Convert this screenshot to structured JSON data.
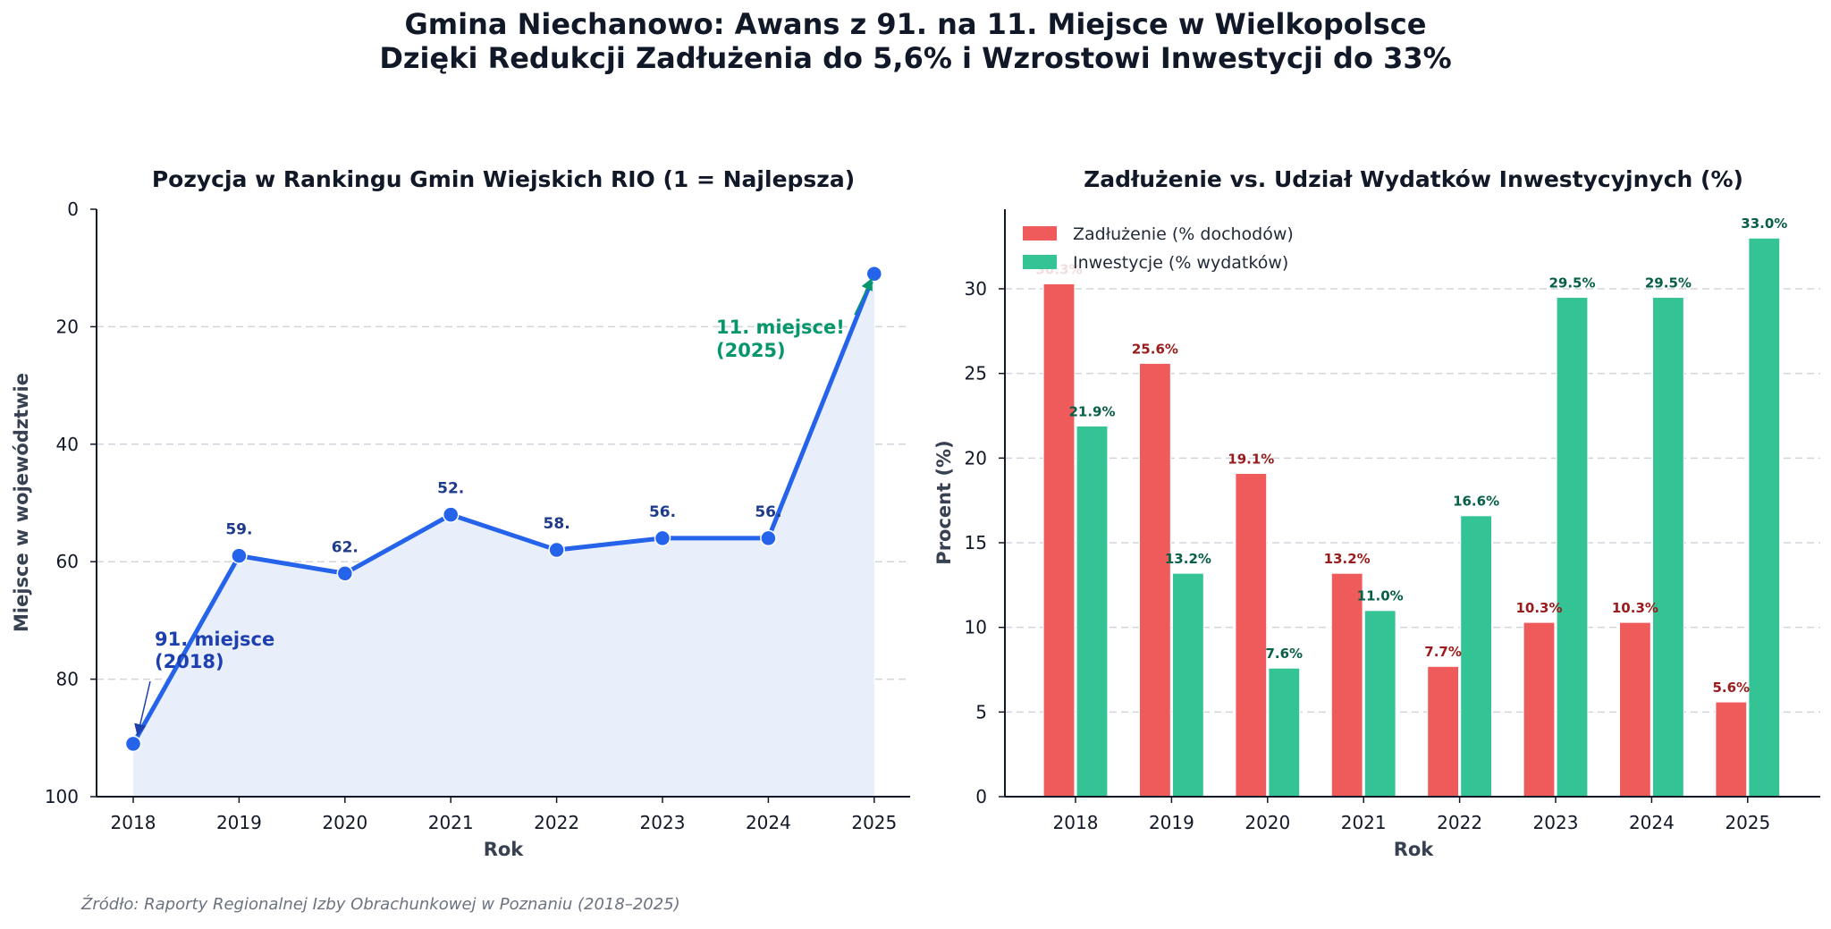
{
  "suptitle": {
    "line1": "Gmina Niechanowo: Awans z 91. na 11. Miejsce w Wielkopolsce",
    "line2": "Dzięki Redukcji Zadłużenia do 5,6% i Wzrostowi Inwestycji do 33%"
  },
  "source": "Źródło: Raporty Regionalnej Izby Obrachunkowej w Poznaniu (2018–2025)",
  "colors": {
    "rank_line": "#2563eb",
    "rank_fill": "#e8effb",
    "rank_label": "#1e3a8a",
    "start_annotation": "#1e40af",
    "end_annotation": "#059669",
    "debt": "#ef5b5b",
    "debt_label": "#991b1b",
    "invest": "#34c394",
    "invest_label": "#065f46",
    "grid": "#d1d5db",
    "axis_text": "#374151"
  },
  "chart_data": [
    {
      "type": "line",
      "title": "Pozycja w Rankingu Gmin Wiejskich RIO (1 = Najlepsza)",
      "xlabel": "Rok",
      "ylabel": "Miejsce w województwie",
      "x": [
        "2018",
        "2019",
        "2020",
        "2021",
        "2022",
        "2023",
        "2024",
        "2025"
      ],
      "series": [
        {
          "values": [
            91,
            59,
            62,
            52,
            58,
            56,
            56,
            11
          ]
        }
      ],
      "point_labels": [
        "",
        "59.",
        "62.",
        "52.",
        "58.",
        "56.",
        "56.",
        ""
      ],
      "ylim": [
        100,
        0
      ],
      "y_inverted": true,
      "yticks": [
        "0",
        "20",
        "40",
        "60",
        "80",
        "100"
      ],
      "area_fill": true,
      "grid": true,
      "annotations": [
        {
          "text_line1": "91. miejsce",
          "text_line2": "(2018)",
          "points_to": "2018"
        },
        {
          "text_line1": "11. miejsce!",
          "text_line2": "(2025)",
          "points_to": "2025"
        }
      ]
    },
    {
      "type": "bar",
      "title": "Zadłużenie vs. Udział Wydatków Inwestycyjnych (%)",
      "xlabel": "Rok",
      "ylabel": "Procent (%)",
      "categories": [
        "2018",
        "2019",
        "2020",
        "2021",
        "2022",
        "2023",
        "2024",
        "2025"
      ],
      "series": [
        {
          "name": "Zadłużenie (% dochodów)",
          "values": [
            30.3,
            25.6,
            19.1,
            13.2,
            7.7,
            10.3,
            10.3,
            5.6
          ],
          "labels": [
            "30.3%",
            "25.6%",
            "19.1%",
            "13.2%",
            "7.7%",
            "10.3%",
            "10.3%",
            "5.6%"
          ]
        },
        {
          "name": "Inwestycje (% wydatków)",
          "values": [
            21.9,
            13.2,
            7.6,
            11.0,
            16.6,
            29.5,
            29.5,
            33.0
          ],
          "labels": [
            "21.9%",
            "13.2%",
            "7.6%",
            "11.0%",
            "16.6%",
            "29.5%",
            "29.5%",
            "33.0%"
          ]
        }
      ],
      "ylim": [
        0,
        34.7
      ],
      "yticks": [
        "0",
        "5",
        "10",
        "15",
        "20",
        "25",
        "30"
      ],
      "legend": "top-left",
      "grid": true
    }
  ]
}
